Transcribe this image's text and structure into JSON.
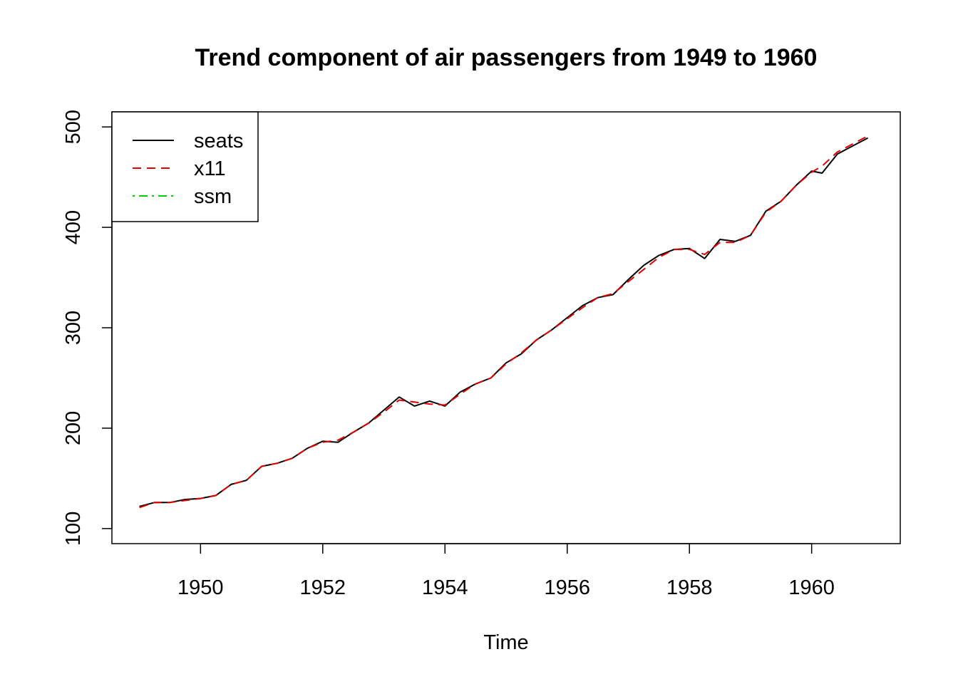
{
  "chart_data": {
    "type": "line",
    "title": "Trend component of air passengers from 1949 to 1960",
    "xlabel": "Time",
    "ylabel": "",
    "xlim": [
      1948.55,
      1961.45
    ],
    "ylim": [
      85,
      515
    ],
    "x_ticks": [
      1950,
      1952,
      1954,
      1956,
      1958,
      1960
    ],
    "y_ticks": [
      100,
      200,
      300,
      400,
      500
    ],
    "grid": false,
    "legend_position": "top-left",
    "series": [
      {
        "name": "seats",
        "color": "#000000",
        "line_style": "solid",
        "x": [
          1949.0,
          1949.25,
          1949.5,
          1949.75,
          1950.0,
          1950.25,
          1950.5,
          1950.75,
          1951.0,
          1951.25,
          1951.5,
          1951.75,
          1952.0,
          1952.25,
          1952.5,
          1952.75,
          1953.0,
          1953.25,
          1953.5,
          1953.75,
          1954.0,
          1954.25,
          1954.5,
          1954.75,
          1955.0,
          1955.25,
          1955.5,
          1955.75,
          1956.0,
          1956.25,
          1956.5,
          1956.75,
          1957.0,
          1957.25,
          1957.5,
          1957.75,
          1958.0,
          1958.25,
          1958.5,
          1958.75,
          1959.0,
          1959.25,
          1959.5,
          1959.75,
          1960.0,
          1960.17,
          1960.42,
          1960.67,
          1960.92
        ],
        "values": [
          122,
          126,
          126,
          129,
          130,
          133,
          144,
          148,
          162,
          165,
          170,
          180,
          187,
          186,
          196,
          205,
          218,
          231,
          222,
          227,
          222,
          236,
          244,
          250,
          265,
          274,
          288,
          298,
          310,
          322,
          330,
          333,
          348,
          362,
          372,
          378,
          379,
          369,
          388,
          386,
          392,
          416,
          426,
          442,
          456,
          454,
          473,
          481,
          489
        ]
      },
      {
        "name": "x11",
        "color": "#DF0000",
        "line_style": "dashed",
        "x": [
          1949.0,
          1949.25,
          1949.5,
          1949.75,
          1950.0,
          1950.25,
          1950.5,
          1950.75,
          1951.0,
          1951.25,
          1951.5,
          1951.75,
          1952.0,
          1952.25,
          1952.5,
          1952.75,
          1953.0,
          1953.25,
          1953.5,
          1953.75,
          1954.0,
          1954.25,
          1954.5,
          1954.75,
          1955.0,
          1955.25,
          1955.5,
          1955.75,
          1956.0,
          1956.25,
          1956.5,
          1956.75,
          1957.0,
          1957.25,
          1957.5,
          1957.75,
          1958.0,
          1958.25,
          1958.5,
          1958.75,
          1959.0,
          1959.25,
          1959.5,
          1959.75,
          1960.0,
          1960.17,
          1960.42,
          1960.67,
          1960.92
        ],
        "values": [
          121,
          126,
          126,
          128,
          130,
          133,
          144,
          148,
          162,
          165,
          170,
          180,
          186,
          188,
          196,
          205,
          216,
          228,
          226,
          224,
          223,
          234,
          244,
          250,
          264,
          275,
          288,
          298,
          309,
          320,
          330,
          334,
          346,
          358,
          370,
          378,
          378,
          373,
          385,
          385,
          392,
          415,
          426,
          442,
          455,
          461,
          475,
          483,
          491
        ]
      },
      {
        "name": "ssm",
        "color": "#00CD00",
        "line_style": "dotdash",
        "x": [],
        "values": []
      }
    ]
  }
}
